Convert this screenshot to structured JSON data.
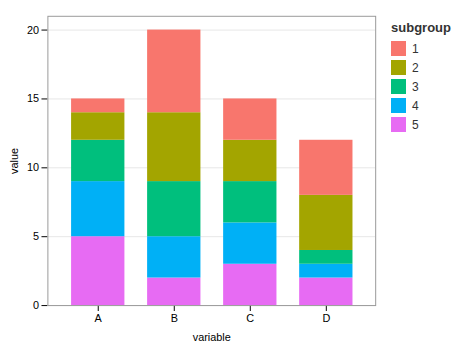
{
  "chart_data": {
    "type": "bar",
    "stacked": true,
    "xlabel": "variable",
    "ylabel": "value",
    "categories": [
      "A",
      "B",
      "C",
      "D"
    ],
    "series": [
      {
        "name": "5",
        "color": "#E76BF3",
        "values": [
          5,
          2,
          3,
          2
        ]
      },
      {
        "name": "4",
        "color": "#00B0F6",
        "values": [
          4,
          3,
          3,
          1
        ]
      },
      {
        "name": "3",
        "color": "#00BF7D",
        "values": [
          3,
          4,
          3,
          1
        ]
      },
      {
        "name": "2",
        "color": "#A3A500",
        "values": [
          2,
          5,
          3,
          4
        ]
      },
      {
        "name": "1",
        "color": "#F8766D",
        "values": [
          1,
          6,
          3,
          4
        ]
      }
    ],
    "legend": "right",
    "legend_title": "subgroup",
    "ylim": [
      0,
      21
    ],
    "yticks": [
      0,
      5,
      10,
      15,
      20
    ],
    "grid": true
  }
}
